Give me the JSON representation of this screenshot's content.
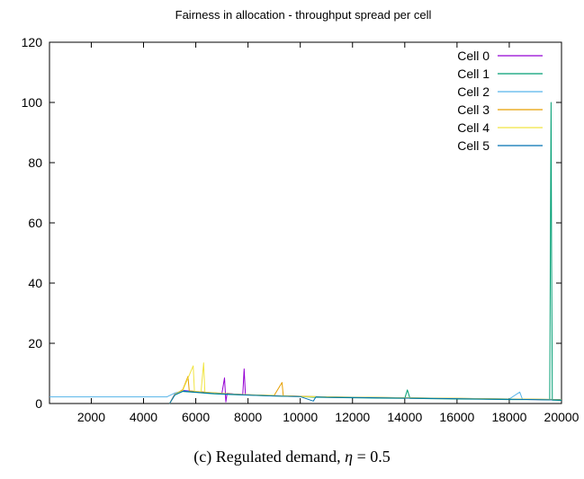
{
  "chart_data": {
    "type": "line",
    "title": "Fairness in allocation - throughput spread per cell",
    "xlabel": "",
    "ylabel": "",
    "xlim": [
      400,
      20000
    ],
    "ylim": [
      0,
      120
    ],
    "xticks": [
      2000,
      4000,
      6000,
      8000,
      10000,
      12000,
      14000,
      16000,
      18000,
      20000
    ],
    "yticks": [
      0,
      20,
      40,
      60,
      80,
      100,
      120
    ],
    "grid": false,
    "legend_position": "top-right",
    "series": [
      {
        "name": "Cell 0",
        "color": "#9400d3",
        "points": [
          [
            5000,
            0
          ],
          [
            5200,
            3.2
          ],
          [
            5500,
            4.4
          ],
          [
            5800,
            4.1
          ],
          [
            6100,
            3.9
          ],
          [
            6400,
            3.7
          ],
          [
            6700,
            3.5
          ],
          [
            7000,
            3.3
          ],
          [
            7100,
            8.5
          ],
          [
            7150,
            0.5
          ],
          [
            7200,
            3.4
          ],
          [
            7500,
            3.1
          ],
          [
            7800,
            3.0
          ],
          [
            7850,
            11.5
          ],
          [
            7900,
            3.0
          ],
          [
            8200,
            2.8
          ],
          [
            8600,
            2.7
          ],
          [
            9000,
            2.6
          ],
          [
            9500,
            2.5
          ],
          [
            10000,
            2.4
          ],
          [
            10500,
            2.2
          ],
          [
            11000,
            2.1
          ],
          [
            12000,
            2.0
          ],
          [
            13000,
            1.9
          ],
          [
            14000,
            1.8
          ],
          [
            15000,
            1.7
          ],
          [
            16000,
            1.6
          ],
          [
            17000,
            1.5
          ],
          [
            18000,
            1.4
          ],
          [
            19000,
            1.3
          ],
          [
            20000,
            1.2
          ]
        ]
      },
      {
        "name": "Cell 1",
        "color": "#009e73",
        "points": [
          [
            5000,
            0
          ],
          [
            5200,
            2.8
          ],
          [
            5500,
            4.0
          ],
          [
            5800,
            3.8
          ],
          [
            6100,
            3.6
          ],
          [
            6400,
            3.4
          ],
          [
            6700,
            3.2
          ],
          [
            7000,
            3.1
          ],
          [
            7500,
            2.9
          ],
          [
            8000,
            2.8
          ],
          [
            8500,
            2.6
          ],
          [
            9000,
            2.5
          ],
          [
            9500,
            2.4
          ],
          [
            10000,
            2.3
          ],
          [
            10500,
            2.1
          ],
          [
            11000,
            2.0
          ],
          [
            12000,
            1.9
          ],
          [
            13000,
            1.8
          ],
          [
            14000,
            1.7
          ],
          [
            14100,
            4.5
          ],
          [
            14200,
            1.7
          ],
          [
            15000,
            1.6
          ],
          [
            16000,
            1.5
          ],
          [
            17000,
            1.4
          ],
          [
            18000,
            1.3
          ],
          [
            19000,
            1.3
          ],
          [
            19550,
            1.2
          ],
          [
            19600,
            100
          ],
          [
            19620,
            47
          ],
          [
            19650,
            1.1
          ],
          [
            20000,
            1.0
          ]
        ]
      },
      {
        "name": "Cell 2",
        "color": "#56b4e9",
        "points": [
          [
            400,
            2.2
          ],
          [
            4900,
            2.2
          ],
          [
            5200,
            3.5
          ],
          [
            5500,
            4.2
          ],
          [
            5800,
            4.0
          ],
          [
            6100,
            3.8
          ],
          [
            6400,
            3.6
          ],
          [
            6700,
            3.4
          ],
          [
            7000,
            3.2
          ],
          [
            7500,
            3.0
          ],
          [
            8000,
            2.9
          ],
          [
            8500,
            2.7
          ],
          [
            9000,
            2.6
          ],
          [
            9500,
            2.5
          ],
          [
            10000,
            2.4
          ],
          [
            11000,
            2.2
          ],
          [
            12000,
            2.1
          ],
          [
            13000,
            2.0
          ],
          [
            14000,
            1.9
          ],
          [
            15000,
            1.8
          ],
          [
            16000,
            1.7
          ],
          [
            17000,
            1.6
          ],
          [
            18000,
            1.5
          ],
          [
            18400,
            3.8
          ],
          [
            18500,
            1.5
          ],
          [
            19000,
            1.4
          ],
          [
            20000,
            1.3
          ]
        ]
      },
      {
        "name": "Cell 3",
        "color": "#e69f00",
        "points": [
          [
            5000,
            0
          ],
          [
            5200,
            3.0
          ],
          [
            5500,
            4.6
          ],
          [
            5700,
            9.0
          ],
          [
            5750,
            4.2
          ],
          [
            6000,
            4.0
          ],
          [
            6300,
            3.8
          ],
          [
            6600,
            3.6
          ],
          [
            7000,
            3.4
          ],
          [
            7500,
            3.1
          ],
          [
            8000,
            2.9
          ],
          [
            8500,
            2.8
          ],
          [
            9000,
            2.7
          ],
          [
            9300,
            7.0
          ],
          [
            9350,
            2.6
          ],
          [
            10000,
            2.4
          ],
          [
            11000,
            2.2
          ],
          [
            12000,
            2.1
          ],
          [
            13000,
            2.0
          ],
          [
            14000,
            1.9
          ],
          [
            15000,
            1.8
          ],
          [
            16000,
            1.7
          ],
          [
            17000,
            1.6
          ],
          [
            18000,
            1.5
          ],
          [
            19000,
            1.4
          ],
          [
            20000,
            1.3
          ]
        ]
      },
      {
        "name": "Cell 4",
        "color": "#f0e442",
        "points": [
          [
            5000,
            0
          ],
          [
            5200,
            3.1
          ],
          [
            5500,
            4.3
          ],
          [
            5900,
            12.5
          ],
          [
            5950,
            4.0
          ],
          [
            6200,
            3.9
          ],
          [
            6300,
            13.5
          ],
          [
            6350,
            3.7
          ],
          [
            6700,
            3.5
          ],
          [
            7000,
            3.3
          ],
          [
            7500,
            3.1
          ],
          [
            8000,
            2.9
          ],
          [
            8500,
            2.8
          ],
          [
            9000,
            2.6
          ],
          [
            9500,
            2.5
          ],
          [
            10000,
            2.3
          ],
          [
            11000,
            2.2
          ],
          [
            12000,
            2.1
          ],
          [
            13000,
            2.0
          ],
          [
            14000,
            1.9
          ],
          [
            15000,
            1.8
          ],
          [
            16000,
            1.7
          ],
          [
            17000,
            1.6
          ],
          [
            18000,
            1.5
          ],
          [
            19000,
            1.4
          ],
          [
            20000,
            1.3
          ]
        ]
      },
      {
        "name": "Cell 5",
        "color": "#0072b2",
        "points": [
          [
            5000,
            0
          ],
          [
            5200,
            2.9
          ],
          [
            5500,
            4.1
          ],
          [
            5800,
            3.9
          ],
          [
            6100,
            3.7
          ],
          [
            6400,
            3.5
          ],
          [
            6700,
            3.3
          ],
          [
            7000,
            3.2
          ],
          [
            7500,
            3.0
          ],
          [
            8000,
            2.8
          ],
          [
            8500,
            2.7
          ],
          [
            9000,
            2.5
          ],
          [
            9500,
            2.4
          ],
          [
            10000,
            2.3
          ],
          [
            10500,
            0.8
          ],
          [
            10600,
            2.2
          ],
          [
            11000,
            2.1
          ],
          [
            12000,
            2.0
          ],
          [
            13000,
            1.9
          ],
          [
            14000,
            1.8
          ],
          [
            15000,
            1.7
          ],
          [
            16000,
            1.6
          ],
          [
            17000,
            1.5
          ],
          [
            18000,
            1.4
          ],
          [
            19000,
            1.3
          ],
          [
            20000,
            1.2
          ]
        ]
      }
    ]
  },
  "caption": {
    "prefix": "(c) Regulated demand, ",
    "eta": "η",
    "suffix": " = 0.5"
  }
}
